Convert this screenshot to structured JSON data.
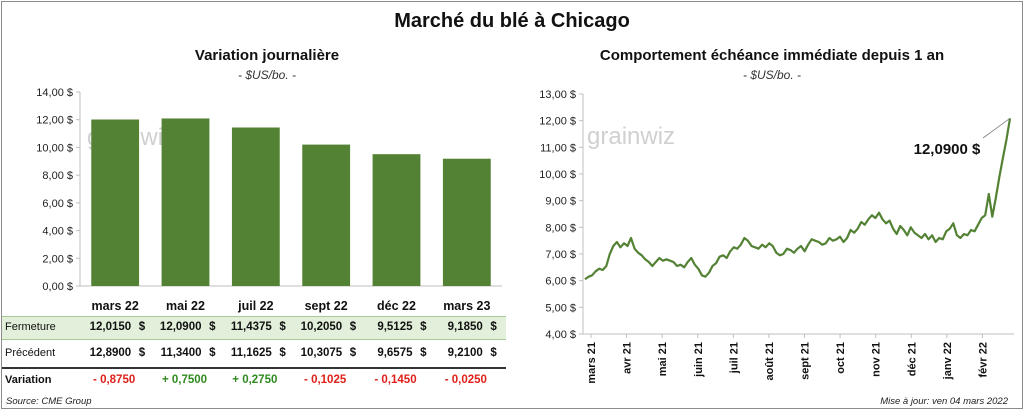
{
  "title": "Marché du blé à Chicago",
  "left": {
    "title": "Variation  journalière",
    "unit": "- $US/bo. -",
    "watermark": "grainwiz"
  },
  "right": {
    "title": "Comportement  échéance immédiate depuis 1 an",
    "unit": "- $US/bo. -",
    "watermark": "grainwiz",
    "last_label": "12,0900 $"
  },
  "table": {
    "currency": "$",
    "rows": [
      {
        "label": "Fermeture",
        "values": [
          "12,0150",
          "12,0900",
          "11,4375",
          "10,2050",
          "9,5125",
          "9,1850"
        ]
      },
      {
        "label": "Précédent",
        "values": [
          "12,8900",
          "11,3400",
          "11,1625",
          "10,3075",
          "9,6575",
          "9,2100"
        ]
      }
    ],
    "variation": {
      "label": "Variation",
      "values": [
        "- 0,8750",
        "+ 0,7500",
        "+ 0,2750",
        "- 0,1025",
        "- 0,1450",
        "- 0,0250"
      ]
    }
  },
  "footer": {
    "source": "Source: CME Group",
    "updated": "Mise à jour: ven 04 mars 2022"
  },
  "colors": {
    "bar": "#548235",
    "line": "#548235",
    "positive": "#2f8a1e",
    "negative": "#e0201a"
  },
  "chart_data": [
    {
      "type": "bar",
      "title": "Variation  journalière",
      "ylabel": "- $US/bo. -",
      "categories": [
        "mars 22",
        "mai 22",
        "juil 22",
        "sept 22",
        "déc 22",
        "mars 23"
      ],
      "values": [
        12.015,
        12.09,
        11.4375,
        10.205,
        9.5125,
        9.185
      ],
      "ylim": [
        0,
        14
      ],
      "yticks": [
        "0,00 $",
        "2,00 $",
        "4,00 $",
        "6,00 $",
        "8,00 $",
        "10,00 $",
        "12,00 $",
        "14,00 $"
      ],
      "grid": false
    },
    {
      "type": "line",
      "title": "Comportement  échéance immédiate depuis 1 an",
      "ylabel": "- $US/bo. -",
      "ylim": [
        4,
        13
      ],
      "yticks": [
        "4,00 $",
        "5,00 $",
        "6,00 $",
        "7,00 $",
        "8,00 $",
        "9,00 $",
        "10,00 $",
        "11,00 $",
        "12,00 $",
        "13,00 $"
      ],
      "xticks": [
        "mars 21",
        "avr 21",
        "mai 21",
        "juin 21",
        "juil 21",
        "août 21",
        "sept 21",
        "oct 21",
        "nov 21",
        "déc 21",
        "janv 22",
        "févr 22"
      ],
      "x_start": "mars 21",
      "x_end": "mars 22",
      "grid": false,
      "series": [
        {
          "values": [
            6.05,
            6.15,
            6.2,
            6.35,
            6.45,
            6.4,
            6.55,
            7.0,
            7.3,
            7.45,
            7.25,
            7.4,
            7.3,
            7.6,
            7.2,
            7.05,
            6.95,
            6.8,
            6.7,
            6.55,
            6.7,
            6.85,
            6.75,
            6.8,
            6.75,
            6.7,
            6.55,
            6.6,
            6.5,
            6.7,
            6.85,
            6.6,
            6.45,
            6.2,
            6.15,
            6.3,
            6.55,
            6.65,
            6.9,
            6.95,
            6.85,
            7.1,
            7.25,
            7.2,
            7.35,
            7.6,
            7.5,
            7.3,
            7.25,
            7.2,
            7.35,
            7.25,
            7.4,
            7.3,
            7.05,
            6.95,
            7.0,
            7.2,
            7.15,
            7.05,
            7.2,
            7.3,
            7.1,
            7.35,
            7.55,
            7.5,
            7.45,
            7.35,
            7.4,
            7.6,
            7.5,
            7.55,
            7.65,
            7.45,
            7.6,
            7.9,
            7.8,
            7.95,
            8.2,
            8.1,
            8.3,
            8.45,
            8.35,
            8.55,
            8.3,
            8.15,
            8.25,
            7.95,
            7.75,
            8.05,
            7.9,
            7.7,
            8.0,
            7.8,
            7.7,
            7.6,
            7.75,
            7.55,
            7.7,
            7.45,
            7.6,
            7.55,
            7.85,
            7.95,
            8.15,
            7.7,
            7.6,
            7.75,
            7.7,
            7.9,
            7.85,
            8.1,
            8.35,
            8.45,
            9.25,
            8.4,
            9.1,
            9.9,
            10.6,
            11.3,
            12.09
          ],
          "color": "#548235"
        }
      ],
      "annotation": "12,0900 $"
    }
  ]
}
